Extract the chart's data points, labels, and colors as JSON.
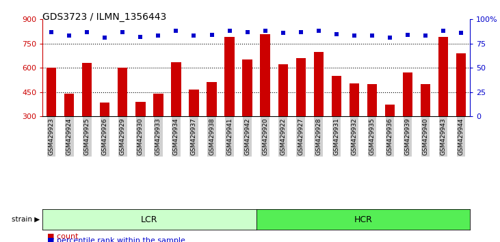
{
  "title": "GDS3723 / ILMN_1356443",
  "categories": [
    "GSM429923",
    "GSM429924",
    "GSM429925",
    "GSM429926",
    "GSM429929",
    "GSM429930",
    "GSM429933",
    "GSM429934",
    "GSM429937",
    "GSM429938",
    "GSM429941",
    "GSM429942",
    "GSM429920",
    "GSM429922",
    "GSM429927",
    "GSM429928",
    "GSM429931",
    "GSM429932",
    "GSM429935",
    "GSM429936",
    "GSM429939",
    "GSM429940",
    "GSM429943",
    "GSM429944"
  ],
  "bar_values": [
    600,
    440,
    630,
    385,
    600,
    390,
    440,
    635,
    465,
    510,
    790,
    650,
    810,
    620,
    660,
    700,
    550,
    505,
    500,
    370,
    570,
    500,
    790,
    690
  ],
  "percentile_values": [
    87,
    83,
    87,
    81,
    87,
    82,
    83,
    88,
    83,
    84,
    88,
    87,
    88,
    86,
    87,
    88,
    85,
    83,
    83,
    81,
    84,
    83,
    88,
    86
  ],
  "ylim_left": [
    300,
    900
  ],
  "yticks_left": [
    300,
    450,
    600,
    750,
    900
  ],
  "ylim_right": [
    0,
    100
  ],
  "yticks_right": [
    0,
    25,
    50,
    75,
    100
  ],
  "bar_color": "#cc0000",
  "dot_color": "#0000cc",
  "lcr_count": 12,
  "hcr_count": 12,
  "lcr_label": "LCR",
  "hcr_label": "HCR",
  "strain_label": "strain",
  "legend_count": "count",
  "legend_percentile": "percentile rank within the sample",
  "group_color_lcr": "#ccffcc",
  "group_color_hcr": "#55ee55",
  "tick_bg_color": "#d0d0d0",
  "title_fontsize": 10,
  "axis_color_left": "#cc0000",
  "axis_color_right": "#0000cc",
  "gridline_yticks": [
    450,
    600,
    750
  ]
}
